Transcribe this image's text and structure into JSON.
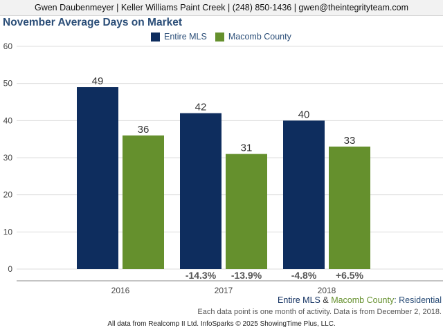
{
  "header": {
    "contact": "Gwen Daubenmeyer | Keller Williams Paint Creek | (248) 850-1436 | gwen@theintegrityteam.com"
  },
  "chart_data": {
    "type": "bar",
    "title": "November Average Days on Market",
    "categories": [
      "2016",
      "2017",
      "2018"
    ],
    "series": [
      {
        "name": "Entire MLS",
        "values": [
          49,
          42,
          40
        ],
        "color": "#0e2d5e"
      },
      {
        "name": "Macomb County",
        "values": [
          36,
          31,
          33
        ],
        "color": "#65902d"
      }
    ],
    "change_labels": [
      [
        "",
        ""
      ],
      [
        "-14.3%",
        "-13.9%"
      ],
      [
        "-4.8%",
        "+6.5%"
      ]
    ],
    "ylim": [
      0,
      60
    ],
    "yticks": [
      0,
      10,
      20,
      30,
      40,
      50,
      60
    ],
    "grid": true,
    "legend_position": "top-center"
  },
  "footer": {
    "series_entire": "Entire MLS",
    "amp": "&",
    "series_county": "Macomb County",
    "suffix": ": Residential",
    "note": "Each data point is one month of activity. Data is from December 2, 2018.",
    "credit": "All data from Realcomp II Ltd. InfoSparks © 2025 ShowingTime Plus, LLC."
  },
  "colors": {
    "entire_mls": "#0e2d5e",
    "macomb": "#65902d",
    "title": "#2b4e78"
  }
}
